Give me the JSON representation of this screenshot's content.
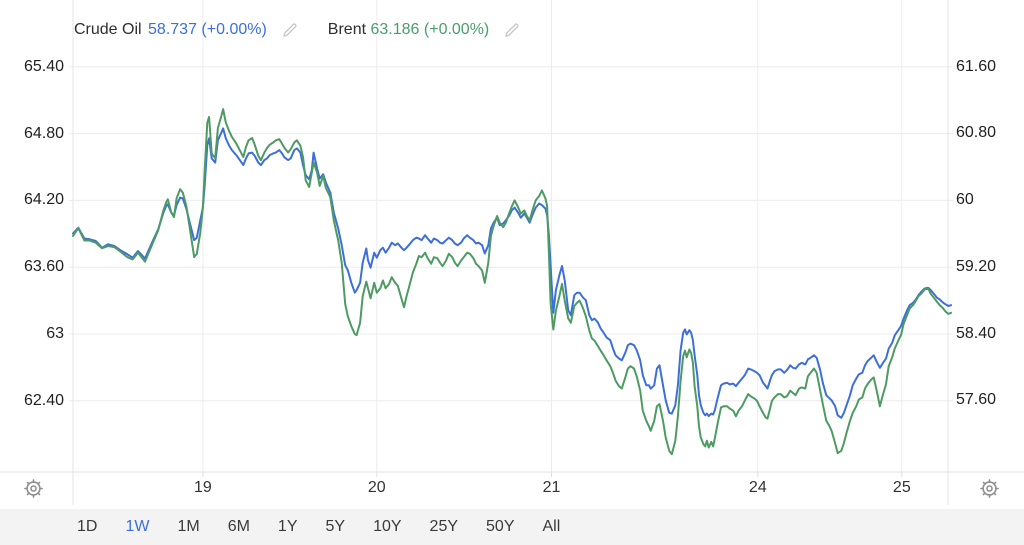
{
  "legend": {
    "series": [
      {
        "label": "Crude Oil",
        "value": "58.737",
        "change": "(+0.00%)"
      },
      {
        "label": "Brent",
        "value": "63.186",
        "change": "(+0.00%)"
      }
    ]
  },
  "toolbar": {
    "ranges": [
      "1D",
      "1W",
      "1M",
      "6M",
      "1Y",
      "5Y",
      "10Y",
      "25Y",
      "50Y",
      "All"
    ],
    "active": "1W"
  },
  "colors": {
    "crude_oil": "#3c6fd9",
    "brent": "#4d9b63",
    "legend_crude": "#3b6fe0",
    "legend_brent": "#4a9e6d",
    "active_range": "#3b6fe0",
    "grid": "#ececec",
    "boundary": "#e4e4e4",
    "axis_line": "#e0e0e0",
    "icon": "#8f8f8f",
    "pencil": "#c6c6c6",
    "toolbar_bg": "#f3f3f3"
  },
  "chart_data": {
    "type": "line",
    "dual_axis": true,
    "grid": true,
    "legend_position": "top-left",
    "x_axis": {
      "labels": [
        "19",
        "20",
        "21",
        "24",
        "25"
      ],
      "positions": [
        0.148,
        0.346,
        0.545,
        0.78,
        0.944
      ]
    },
    "left_axis": {
      "series": "Brent",
      "ticks": [
        "65.40",
        "64.80",
        "64.20",
        "63.60",
        "63",
        "62.40"
      ],
      "tick_values": [
        65.4,
        64.8,
        64.2,
        63.6,
        63.0,
        62.4
      ],
      "top_value": 66.0,
      "bottom_value": 61.76
    },
    "right_axis": {
      "series": "Crude Oil",
      "ticks": [
        "61.60",
        "60.80",
        "60",
        "59.20",
        "58.40",
        "57.60"
      ],
      "tick_values": [
        61.6,
        60.8,
        60.0,
        59.2,
        58.4,
        57.6
      ],
      "top_value": 62.4,
      "bottom_value": 56.74
    },
    "x": [
      0,
      0.006,
      0.013,
      0.019,
      0.026,
      0.033,
      0.04,
      0.047,
      0.054,
      0.062,
      0.068,
      0.074,
      0.082,
      0.09,
      0.097,
      0.103,
      0.106,
      0.108,
      0.112,
      0.115,
      0.118,
      0.122,
      0.125,
      0.129,
      0.133,
      0.138,
      0.141,
      0.145,
      0.148,
      0.15,
      0.153,
      0.155,
      0.158,
      0.162,
      0.165,
      0.169,
      0.171,
      0.174,
      0.178,
      0.181,
      0.186,
      0.19,
      0.194,
      0.197,
      0.2,
      0.204,
      0.207,
      0.211,
      0.214,
      0.218,
      0.221,
      0.224,
      0.228,
      0.231,
      0.235,
      0.238,
      0.241,
      0.245,
      0.248,
      0.252,
      0.255,
      0.259,
      0.262,
      0.265,
      0.269,
      0.272,
      0.274,
      0.278,
      0.281,
      0.285,
      0.288,
      0.293,
      0.297,
      0.302,
      0.306,
      0.31,
      0.313,
      0.317,
      0.321,
      0.323,
      0.327,
      0.33,
      0.334,
      0.336,
      0.339,
      0.343,
      0.346,
      0.35,
      0.353,
      0.356,
      0.36,
      0.363,
      0.367,
      0.37,
      0.374,
      0.377,
      0.38,
      0.384,
      0.387,
      0.391,
      0.394,
      0.397,
      0.401,
      0.404,
      0.408,
      0.411,
      0.415,
      0.418,
      0.421,
      0.425,
      0.428,
      0.432,
      0.435,
      0.438,
      0.442,
      0.445,
      0.449,
      0.452,
      0.456,
      0.459,
      0.462,
      0.466,
      0.469,
      0.473,
      0.476,
      0.479,
      0.483,
      0.486,
      0.49,
      0.493,
      0.497,
      0.5,
      0.503,
      0.507,
      0.51,
      0.514,
      0.517,
      0.52,
      0.524,
      0.527,
      0.531,
      0.534,
      0.538,
      0.54,
      0.542,
      0.544,
      0.547,
      0.55,
      0.554,
      0.557,
      0.56,
      0.564,
      0.567,
      0.571,
      0.574,
      0.577,
      0.581,
      0.584,
      0.588,
      0.591,
      0.594,
      0.598,
      0.601,
      0.605,
      0.608,
      0.612,
      0.615,
      0.618,
      0.622,
      0.625,
      0.629,
      0.632,
      0.635,
      0.639,
      0.642,
      0.646,
      0.649,
      0.653,
      0.656,
      0.658,
      0.662,
      0.665,
      0.668,
      0.672,
      0.675,
      0.679,
      0.682,
      0.686,
      0.689,
      0.692,
      0.695,
      0.697,
      0.699,
      0.702,
      0.704,
      0.706,
      0.708,
      0.711,
      0.713,
      0.715,
      0.718,
      0.72,
      0.722,
      0.724,
      0.727,
      0.729,
      0.731,
      0.734,
      0.738,
      0.741,
      0.745,
      0.748,
      0.752,
      0.755,
      0.758,
      0.762,
      0.765,
      0.769,
      0.772,
      0.776,
      0.779,
      0.782,
      0.786,
      0.789,
      0.791,
      0.794,
      0.796,
      0.799,
      0.803,
      0.806,
      0.81,
      0.813,
      0.817,
      0.82,
      0.823,
      0.827,
      0.83,
      0.834,
      0.837,
      0.84,
      0.844,
      0.847,
      0.851,
      0.854,
      0.858,
      0.861,
      0.864,
      0.868,
      0.871,
      0.875,
      0.878,
      0.881,
      0.885,
      0.888,
      0.892,
      0.895,
      0.899,
      0.902,
      0.905,
      0.909,
      0.912,
      0.916,
      0.919,
      0.922,
      0.926,
      0.929,
      0.933,
      0.936,
      0.94,
      0.943,
      0.946,
      0.95,
      0.953,
      0.957,
      0.96,
      0.963,
      0.967,
      0.97,
      0.974,
      0.977,
      0.981,
      0.984,
      0.987,
      0.991,
      0.994,
      0.997,
      1
    ],
    "series": [
      {
        "name": "Crude Oil",
        "axis": "right",
        "color": "#3c6fd9",
        "last_value": 58.737,
        "change": "+0.00%",
        "values": [
          59.6,
          59.67,
          59.54,
          59.53,
          59.51,
          59.43,
          59.47,
          59.45,
          59.4,
          59.35,
          59.31,
          59.39,
          59.3,
          59.49,
          59.65,
          59.85,
          59.93,
          59.95,
          59.85,
          59.82,
          59.94,
          60.03,
          60.02,
          59.9,
          59.73,
          59.52,
          59.55,
          59.76,
          59.91,
          60.18,
          60.66,
          60.74,
          60.5,
          60.45,
          60.72,
          60.81,
          60.86,
          60.74,
          60.65,
          60.6,
          60.54,
          60.48,
          60.42,
          60.5,
          60.56,
          60.57,
          60.53,
          60.45,
          60.42,
          60.48,
          60.5,
          60.54,
          60.56,
          60.57,
          60.6,
          60.56,
          60.51,
          60.48,
          60.5,
          60.6,
          60.62,
          60.57,
          60.42,
          60.3,
          60.25,
          60.36,
          60.57,
          60.38,
          60.26,
          60.31,
          60.21,
          60.09,
          59.85,
          59.66,
          59.46,
          59.22,
          59.16,
          59.01,
          58.89,
          58.92,
          59.01,
          59.25,
          59.42,
          59.28,
          59.19,
          59.37,
          59.31,
          59.4,
          59.43,
          59.37,
          59.43,
          59.49,
          59.46,
          59.48,
          59.43,
          59.4,
          59.43,
          59.48,
          59.52,
          59.55,
          59.54,
          59.52,
          59.58,
          59.54,
          59.49,
          59.54,
          59.52,
          59.49,
          59.48,
          59.52,
          59.55,
          59.52,
          59.48,
          59.46,
          59.49,
          59.54,
          59.58,
          59.55,
          59.52,
          59.48,
          59.49,
          59.46,
          59.36,
          59.46,
          59.66,
          59.73,
          59.79,
          59.7,
          59.72,
          59.76,
          59.82,
          59.88,
          59.91,
          59.85,
          59.79,
          59.84,
          59.79,
          59.73,
          59.84,
          59.91,
          59.96,
          59.94,
          59.9,
          59.82,
          59.58,
          59.22,
          58.65,
          58.92,
          59.1,
          59.21,
          59.04,
          58.68,
          58.62,
          58.86,
          58.89,
          58.89,
          58.83,
          58.8,
          58.62,
          58.56,
          58.58,
          58.53,
          58.46,
          58.4,
          58.35,
          58.32,
          58.22,
          58.14,
          58.1,
          58.08,
          58.17,
          58.26,
          58.28,
          58.26,
          58.2,
          58.08,
          57.9,
          57.78,
          57.78,
          57.74,
          57.78,
          57.98,
          58.02,
          57.78,
          57.6,
          57.45,
          57.44,
          57.54,
          57.78,
          58.2,
          58.41,
          58.45,
          58.39,
          58.44,
          58.41,
          58.32,
          58.14,
          57.9,
          57.66,
          57.54,
          57.45,
          57.42,
          57.44,
          57.41,
          57.44,
          57.43,
          57.48,
          57.62,
          57.78,
          57.8,
          57.81,
          57.79,
          57.8,
          57.77,
          57.81,
          57.86,
          57.9,
          57.98,
          57.97,
          57.95,
          57.93,
          57.9,
          57.81,
          57.77,
          57.74,
          57.84,
          57.9,
          57.95,
          57.97,
          57.97,
          57.93,
          57.96,
          58.02,
          57.99,
          57.98,
          58.03,
          58.05,
          58.03,
          58.09,
          58.11,
          58.14,
          58.11,
          57.96,
          57.81,
          57.66,
          57.63,
          57.6,
          57.53,
          57.42,
          57.39,
          57.45,
          57.54,
          57.66,
          57.78,
          57.86,
          57.91,
          57.93,
          58.02,
          58.07,
          58.11,
          58.14,
          58.05,
          57.99,
          58.04,
          58.1,
          58.22,
          58.29,
          58.38,
          58.44,
          58.49,
          58.58,
          58.68,
          58.74,
          58.77,
          58.81,
          58.86,
          58.91,
          58.94,
          58.95,
          58.92,
          58.87,
          58.83,
          58.81,
          58.77,
          58.75,
          58.73,
          58.74
        ]
      },
      {
        "name": "Brent",
        "axis": "left",
        "color": "#4d9b63",
        "last_value": 63.186,
        "change": "+0.00%",
        "values": [
          63.88,
          63.95,
          63.84,
          63.84,
          63.82,
          63.77,
          63.79,
          63.78,
          63.74,
          63.69,
          63.67,
          63.73,
          63.65,
          63.8,
          63.93,
          64.11,
          64.18,
          64.21,
          64.09,
          64.05,
          64.22,
          64.3,
          64.27,
          64.15,
          63.95,
          63.69,
          63.72,
          63.91,
          64.14,
          64.47,
          64.9,
          64.95,
          64.62,
          64.58,
          64.85,
          64.96,
          65.02,
          64.9,
          64.82,
          64.77,
          64.71,
          64.65,
          64.59,
          64.68,
          64.74,
          64.76,
          64.7,
          64.6,
          64.56,
          64.63,
          64.67,
          64.7,
          64.72,
          64.74,
          64.75,
          64.71,
          64.67,
          64.63,
          64.66,
          64.72,
          64.74,
          64.69,
          64.59,
          64.38,
          64.32,
          64.45,
          64.54,
          64.45,
          64.33,
          64.42,
          64.31,
          64.23,
          64.02,
          63.84,
          63.64,
          63.27,
          63.16,
          63.07,
          63,
          62.99,
          63.1,
          63.34,
          63.47,
          63.41,
          63.32,
          63.46,
          63.37,
          63.41,
          63.48,
          63.41,
          63.45,
          63.51,
          63.46,
          63.43,
          63.32,
          63.24,
          63.34,
          63.46,
          63.55,
          63.63,
          63.7,
          63.69,
          63.73,
          63.68,
          63.63,
          63.69,
          63.68,
          63.64,
          63.61,
          63.66,
          63.72,
          63.69,
          63.64,
          63.61,
          63.66,
          63.69,
          63.73,
          63.72,
          63.68,
          63.63,
          63.61,
          63.57,
          63.46,
          63.64,
          63.88,
          63.97,
          64.06,
          64,
          63.96,
          64,
          64.09,
          64.15,
          64.2,
          64.14,
          64.08,
          64.11,
          64.06,
          64.02,
          64.13,
          64.2,
          64.24,
          64.29,
          64.22,
          64.15,
          63.73,
          63.28,
          63.04,
          63.21,
          63.34,
          63.45,
          63.3,
          63.14,
          63.1,
          63.25,
          63.28,
          63.3,
          63.23,
          63.16,
          63.03,
          62.96,
          62.94,
          62.89,
          62.85,
          62.8,
          62.76,
          62.71,
          62.65,
          62.58,
          62.53,
          62.51,
          62.61,
          62.69,
          62.71,
          62.69,
          62.62,
          62.49,
          62.31,
          62.22,
          62.17,
          62.13,
          62.22,
          62.35,
          62.37,
          62.22,
          62.07,
          61.95,
          61.92,
          62.04,
          62.26,
          62.58,
          62.8,
          62.85,
          62.79,
          62.86,
          62.83,
          62.74,
          62.53,
          62.35,
          62.17,
          62.07,
          62.01,
          61.99,
          62.04,
          61.98,
          62.03,
          61.99,
          62.06,
          62.19,
          62.34,
          62.35,
          62.35,
          62.33,
          62.31,
          62.26,
          62.31,
          62.35,
          62.4,
          62.46,
          62.44,
          62.42,
          62.4,
          62.35,
          62.29,
          62.25,
          62.24,
          62.33,
          62.4,
          62.43,
          62.46,
          62.46,
          62.43,
          62.44,
          62.49,
          62.47,
          62.45,
          62.51,
          62.52,
          62.51,
          62.62,
          62.65,
          62.69,
          62.65,
          62.49,
          62.37,
          62.22,
          62.18,
          62.13,
          62.02,
          61.93,
          61.95,
          62.02,
          62.11,
          62.22,
          62.29,
          62.35,
          62.41,
          62.43,
          62.51,
          62.55,
          62.59,
          62.61,
          62.47,
          62.35,
          62.44,
          62.55,
          62.71,
          62.79,
          62.87,
          62.94,
          62.99,
          63.09,
          63.17,
          63.23,
          63.26,
          63.3,
          63.34,
          63.37,
          63.4,
          63.41,
          63.36,
          63.32,
          63.29,
          63.26,
          63.23,
          63.2,
          63.18,
          63.19
        ]
      }
    ]
  }
}
